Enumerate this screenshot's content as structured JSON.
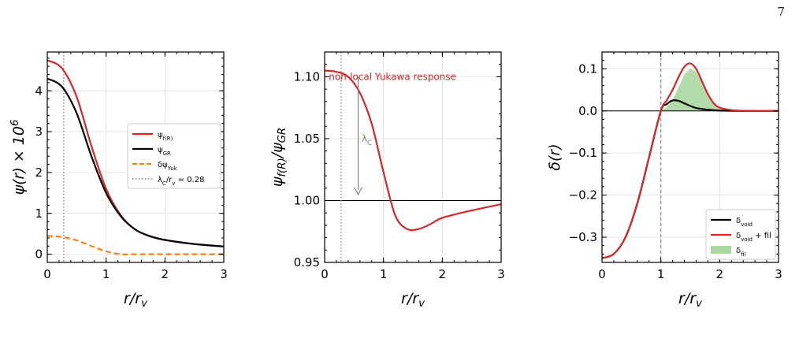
{
  "page": {
    "number": "7"
  },
  "chart_data": [
    {
      "type": "line",
      "title": "",
      "xlabel": "r/r_v",
      "ylabel": "ψ(r) × 10^6",
      "xlim": [
        0,
        3
      ],
      "ylim": [
        -0.2,
        4.95
      ],
      "xticks": [
        0,
        1,
        2,
        3
      ],
      "yticks": [
        0,
        1,
        2,
        3,
        4
      ],
      "ytick_labels": [
        "0",
        "1",
        "2",
        "3",
        "4"
      ],
      "grid": true,
      "legend_position": "center-right",
      "series": [
        {
          "name": "ψ_f(R)",
          "color": "#d62728",
          "dash": "solid",
          "x": [
            0,
            0.25,
            0.5,
            0.75,
            1.0,
            1.25,
            1.5,
            1.75,
            2.0,
            2.5,
            3.0
          ],
          "y": [
            4.75,
            4.55,
            3.85,
            2.65,
            1.6,
            0.95,
            0.6,
            0.44,
            0.35,
            0.25,
            0.19
          ]
        },
        {
          "name": "ψ_GR",
          "color": "#000000",
          "dash": "solid",
          "x": [
            0,
            0.25,
            0.5,
            0.75,
            1.0,
            1.25,
            1.5,
            1.75,
            2.0,
            2.5,
            3.0
          ],
          "y": [
            4.3,
            4.1,
            3.45,
            2.4,
            1.5,
            0.93,
            0.6,
            0.44,
            0.35,
            0.25,
            0.19
          ]
        },
        {
          "name": "δψ_Yuk",
          "color": "#ff7f0e",
          "dash": "dashed",
          "x": [
            0,
            0.25,
            0.5,
            0.75,
            1.0,
            1.25,
            1.5,
            2.0,
            2.5,
            3.0
          ],
          "y": [
            0.45,
            0.42,
            0.34,
            0.2,
            0.07,
            0.0,
            0.0,
            0.0,
            0.0,
            0.0
          ]
        }
      ],
      "vlines": [
        {
          "x": 0.28,
          "name": "λ_C/r_v = 0.28",
          "color": "#808080",
          "dash": "dotted"
        }
      ]
    },
    {
      "type": "line",
      "title": "",
      "xlabel": "r/r_v",
      "ylabel": "ψ_f(R)/ψ_GR",
      "xlim": [
        0,
        3
      ],
      "ylim": [
        0.95,
        1.12
      ],
      "xticks": [
        0,
        1,
        2,
        3
      ],
      "yticks": [
        0.95,
        1.0,
        1.05,
        1.1
      ],
      "ytick_labels": [
        "0.95",
        "1.00",
        "1.05",
        "1.10"
      ],
      "grid": true,
      "series": [
        {
          "name": "",
          "color": "#d62728",
          "dash": "solid",
          "x": [
            0,
            0.2,
            0.4,
            0.6,
            0.8,
            1.0,
            1.2,
            1.4,
            1.6,
            1.8,
            2.0,
            2.5,
            3.0
          ],
          "y": [
            1.105,
            1.104,
            1.1,
            1.087,
            1.062,
            1.023,
            0.988,
            0.977,
            0.977,
            0.981,
            0.986,
            0.992,
            0.997
          ]
        }
      ],
      "hlines": [
        {
          "y": 1.0,
          "color": "#000000"
        }
      ],
      "vlines": [
        {
          "x": 0.28,
          "color": "#808080",
          "dash": "dotted"
        }
      ],
      "annotations": [
        {
          "text": "non-local Yukawa response",
          "color": "#d62728",
          "x": 0.07,
          "y": 1.1
        },
        {
          "text": "λ_C",
          "color": "#808080",
          "x": 0.63,
          "y": 1.05,
          "arrow_x": 0.57,
          "arrow_from": 1.1,
          "arrow_to": 1.005
        }
      ]
    },
    {
      "type": "area",
      "title": "",
      "xlabel": "r/r_v",
      "ylabel": "δ(r)",
      "xlim": [
        0,
        3
      ],
      "ylim": [
        -0.36,
        0.14
      ],
      "xticks": [
        0,
        1,
        2,
        3
      ],
      "yticks": [
        0.1,
        0.0,
        -0.1,
        -0.2,
        -0.3
      ],
      "ytick_labels": [
        "0.1",
        "0.0",
        "−0.1",
        "−0.2",
        "−0.3"
      ],
      "grid": true,
      "legend_position": "bottom-right",
      "series": [
        {
          "name": "δ_void",
          "color": "#000000",
          "dash": "solid",
          "x": [
            0,
            0.2,
            0.4,
            0.6,
            0.8,
            1.0,
            1.1,
            1.2,
            1.3,
            1.4,
            1.5,
            1.6,
            1.8,
            2.0,
            2.5,
            3.0
          ],
          "y": [
            -0.35,
            -0.34,
            -0.3,
            -0.22,
            -0.11,
            0.0,
            0.016,
            0.025,
            0.024,
            0.018,
            0.012,
            0.007,
            0.003,
            0.001,
            0.0,
            0.0
          ]
        },
        {
          "name": "δ_void + fil",
          "color": "#d62728",
          "dash": "solid",
          "x": [
            0,
            0.2,
            0.4,
            0.6,
            0.8,
            1.0,
            1.1,
            1.2,
            1.3,
            1.4,
            1.5,
            1.6,
            1.7,
            1.8,
            1.9,
            2.0,
            2.2,
            2.5,
            3.0
          ],
          "y": [
            -0.35,
            -0.34,
            -0.3,
            -0.22,
            -0.11,
            0.0,
            0.025,
            0.05,
            0.08,
            0.105,
            0.113,
            0.1,
            0.07,
            0.04,
            0.018,
            0.008,
            0.002,
            0.0,
            0.0
          ]
        },
        {
          "name": "δ_fil",
          "color": "#a9d8a0",
          "fill": true,
          "x": [
            1.0,
            1.1,
            1.2,
            1.3,
            1.4,
            1.5,
            1.6,
            1.7,
            1.8,
            1.9,
            2.0,
            2.2,
            2.5
          ],
          "y": [
            0.0,
            0.009,
            0.025,
            0.056,
            0.087,
            0.101,
            0.093,
            0.066,
            0.037,
            0.016,
            0.007,
            0.002,
            0.0
          ]
        }
      ],
      "hlines": [
        {
          "y": 0.0,
          "color": "#000000"
        }
      ],
      "vlines": [
        {
          "x": 1.0,
          "color": "#909090",
          "dash": "dashed"
        }
      ]
    }
  ]
}
